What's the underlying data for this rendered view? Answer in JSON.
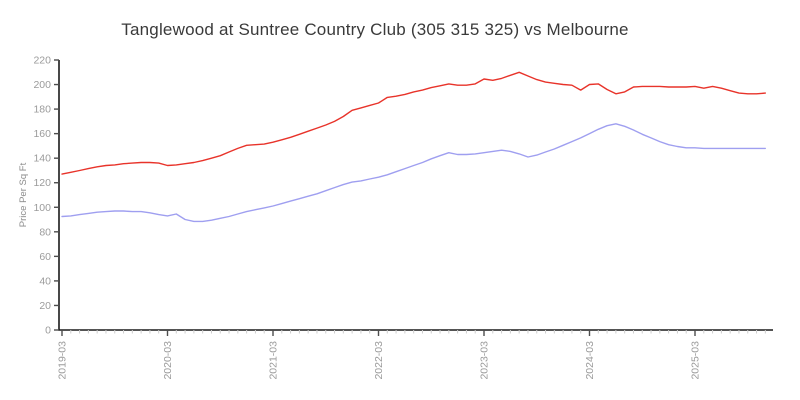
{
  "chart_data": {
    "type": "line",
    "title": "Tanglewood at Suntree Country Club (305 315 325) vs Melbourne",
    "xlabel": "",
    "ylabel": "Price Per Sq Ft",
    "ylim": [
      0,
      220
    ],
    "ytick_step": 20,
    "ytick_labels": [
      "0",
      "20",
      "40",
      "60",
      "80",
      "100",
      "120",
      "140",
      "160",
      "180",
      "200",
      "220"
    ],
    "x_major_tick_labels": [
      "2019-03",
      "2020-03",
      "2021-03",
      "2022-03",
      "2023-03",
      "2024-03",
      "2025-03"
    ],
    "grid": false,
    "legend_position": "none",
    "x": [
      "2019-03",
      "2019-04",
      "2019-05",
      "2019-06",
      "2019-07",
      "2019-08",
      "2019-09",
      "2019-10",
      "2019-11",
      "2019-12",
      "2020-01",
      "2020-02",
      "2020-03",
      "2020-04",
      "2020-05",
      "2020-06",
      "2020-07",
      "2020-08",
      "2020-09",
      "2020-10",
      "2020-11",
      "2020-12",
      "2021-01",
      "2021-02",
      "2021-03",
      "2021-04",
      "2021-05",
      "2021-06",
      "2021-07",
      "2021-08",
      "2021-09",
      "2021-10",
      "2021-11",
      "2021-12",
      "2022-01",
      "2022-02",
      "2022-03",
      "2022-04",
      "2022-05",
      "2022-06",
      "2022-07",
      "2022-08",
      "2022-09",
      "2022-10",
      "2022-11",
      "2022-12",
      "2023-01",
      "2023-02",
      "2023-03",
      "2023-04",
      "2023-05",
      "2023-06",
      "2023-07",
      "2023-08",
      "2023-09",
      "2023-10",
      "2023-11",
      "2023-12",
      "2024-01",
      "2024-02",
      "2024-03",
      "2024-04",
      "2024-05",
      "2024-06",
      "2024-07",
      "2024-08",
      "2024-09",
      "2024-10",
      "2024-11",
      "2024-12",
      "2025-01",
      "2025-02",
      "2025-03",
      "2025-04",
      "2025-05",
      "2025-06",
      "2025-07",
      "2025-08",
      "2025-09",
      "2025-10",
      "2025-11"
    ],
    "series": [
      {
        "name": "Tanglewood at Suntree Country Club (305 315 325)",
        "color": "#e8332a",
        "values": [
          127,
          128.5,
          130,
          131.5,
          133,
          134,
          134.5,
          135.5,
          136,
          136.5,
          136.5,
          136,
          134,
          134.5,
          135.5,
          136.5,
          138,
          140,
          142,
          145,
          148,
          150.5,
          151,
          151.5,
          153,
          155,
          157,
          159.5,
          162,
          164.5,
          167,
          170,
          174,
          179,
          181,
          183,
          185,
          189.5,
          190.5,
          192,
          194,
          195.5,
          197.5,
          199,
          200.5,
          199.5,
          199.5,
          200.5,
          204.5,
          203.5,
          205,
          207.5,
          210,
          207,
          204,
          202,
          201,
          200,
          199.5,
          195.5,
          200,
          200.5,
          196,
          192.5,
          194,
          198,
          198.5,
          198.5,
          198.5,
          198,
          198,
          198,
          198.5,
          197,
          198.5,
          197,
          195,
          193,
          192.5,
          192.5,
          193
        ]
      },
      {
        "name": "Melbourne",
        "color": "#9f9ff0",
        "values": [
          92.5,
          93,
          94,
          95,
          96,
          96.5,
          97,
          97,
          96.5,
          96.5,
          95.5,
          94,
          93,
          94.5,
          90,
          88.5,
          88.5,
          89.5,
          91,
          92.5,
          94.5,
          96.5,
          98,
          99.5,
          101,
          103,
          105,
          107,
          109,
          111,
          113.5,
          116,
          118.5,
          120.5,
          121.5,
          123,
          124.5,
          126.5,
          129,
          131.5,
          134,
          136.5,
          139.5,
          142,
          144.5,
          143,
          143,
          143.5,
          144.5,
          145.5,
          146.5,
          145.5,
          143.5,
          141,
          142.5,
          145,
          147.5,
          150.5,
          153.5,
          156.5,
          160,
          163.5,
          166.5,
          168,
          166,
          163,
          159.5,
          156.5,
          153.5,
          151,
          149.5,
          148.5,
          148.5,
          148,
          148,
          148,
          148,
          148,
          148,
          148,
          148
        ]
      }
    ],
    "axis_colors": {
      "axis_line": "#1a1a1a",
      "major_tick": "#4d4d4d",
      "minor_tick": "#cccccc",
      "tick_label": "#9b9b9b",
      "ylabel_color": "#8a8a8a",
      "title_color": "#3a3a3a"
    }
  }
}
